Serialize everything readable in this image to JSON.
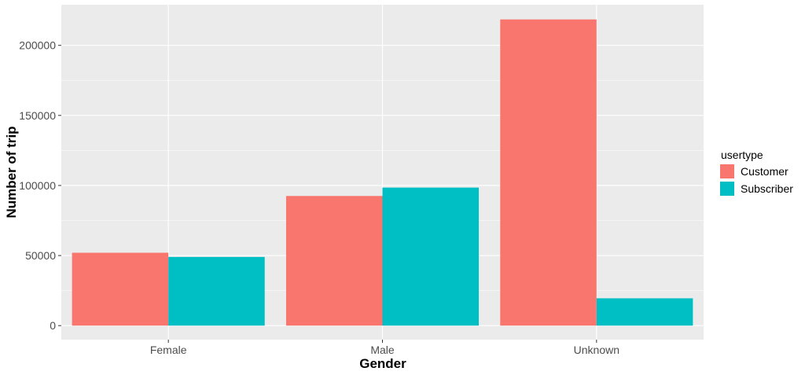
{
  "chart_data": {
    "type": "bar",
    "xlabel": "Gender",
    "ylabel": "Number of trip",
    "categories": [
      "Female",
      "Male",
      "Unknown"
    ],
    "series": [
      {
        "name": "Customer",
        "values": [
          52000,
          92500,
          218500
        ],
        "color": "#F8766D"
      },
      {
        "name": "Subscriber",
        "values": [
          49000,
          98500,
          19500
        ],
        "color": "#00BFC4"
      }
    ],
    "ylim": [
      -10000,
      229000
    ],
    "yticks": [
      0,
      50000,
      100000,
      150000,
      200000
    ],
    "ytick_labels": [
      "0",
      "50000",
      "100000",
      "150000",
      "200000"
    ],
    "legend": {
      "title": "usertype",
      "position": "right"
    },
    "grid": true,
    "panel_background": "#EBEBEB",
    "grid_color": "#FFFFFF"
  }
}
